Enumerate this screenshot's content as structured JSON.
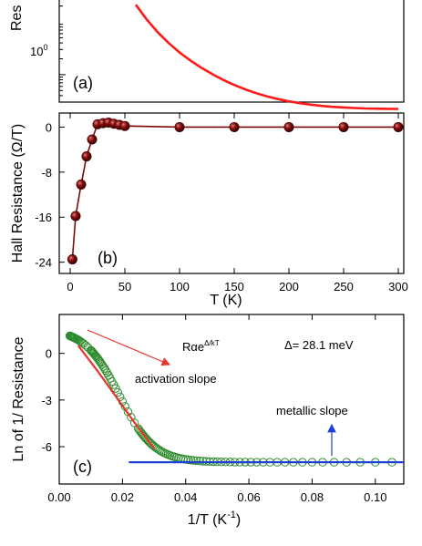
{
  "colors": {
    "panel_a_curve": "#ff1a1a",
    "panel_b_series": "#7a0a0a",
    "panel_c_data": "#2e8b2e",
    "panel_c_fit": "#e8352a",
    "panel_c_metallic": "#1f3fd6",
    "annotation_arrow_red": "#e8352a",
    "annotation_arrow_blue": "#1f3fd6"
  },
  "chart_data": [
    {
      "type": "line",
      "panel_label": "(a)",
      "ylabel": "Res",
      "yscale": "log",
      "yticks": [
        {
          "value": 1,
          "label_base": "10",
          "label_exp": "0"
        }
      ],
      "xlim": [
        -10,
        305
      ],
      "ylim_log10": [
        -0.52,
        1.45
      ],
      "series": [
        {
          "x": [
            60,
            70,
            80,
            90,
            100,
            110,
            120,
            130,
            140,
            150,
            160,
            170,
            180,
            190,
            200,
            210,
            220,
            230,
            240,
            250,
            260,
            270,
            280,
            290,
            300
          ],
          "y": [
            21.2,
            11.1,
            6.38,
            3.98,
            2.64,
            1.85,
            1.35,
            1.02,
            0.795,
            0.638,
            0.527,
            0.446,
            0.387,
            0.345,
            0.312,
            0.288,
            0.27,
            0.256,
            0.246,
            0.239,
            0.233,
            0.229,
            0.227,
            0.225,
            0.224
          ]
        }
      ]
    },
    {
      "type": "line",
      "panel_label": "(b)",
      "ylabel": "Hall Resistance (Ω/T)",
      "xlabel": "T (K)",
      "xlim": [
        -10,
        305
      ],
      "ylim": [
        -26,
        2.5
      ],
      "xticks": [
        0,
        50,
        100,
        150,
        200,
        250,
        300
      ],
      "yticks": [
        0,
        -8,
        -16,
        -24
      ],
      "series": [
        {
          "x": [
            2,
            5,
            10,
            15,
            20,
            25,
            30,
            35,
            40,
            45,
            50,
            100,
            150,
            200,
            250,
            300
          ],
          "y": [
            -23.5,
            -15.8,
            -10.2,
            -5.2,
            -2.2,
            0.5,
            0.7,
            0.8,
            0.6,
            0.4,
            0.2,
            0,
            0,
            0,
            0,
            0
          ]
        }
      ]
    },
    {
      "type": "scatter",
      "panel_label": "(c)",
      "ylabel": "Ln of 1/ Resistance",
      "xlabel": "1/T (K",
      "xlabel_sup": "-1",
      "xlabel_end": ")",
      "xlim": [
        0,
        0.109
      ],
      "ylim": [
        -8.4,
        2.5
      ],
      "xticks": [
        0.0,
        0.02,
        0.04,
        0.06,
        0.08,
        0.1
      ],
      "xtick_labels": [
        "0.00",
        "0.02",
        "0.04",
        "0.06",
        "0.08",
        "0.10"
      ],
      "yticks": [
        0,
        -3,
        -6
      ],
      "formula_main": "Rαe",
      "formula_sup": "Δ/kT",
      "delta_text": "Δ=  28.1 meV",
      "annotation_activation": "activation slope",
      "annotation_metallic": "metallic slope",
      "fit_activation": {
        "x": [
          0.006,
          0.012,
          0.018,
          0.024,
          0.03
        ],
        "y": [
          0.5,
          -1.1,
          -2.8,
          -4.5,
          -6.1
        ]
      },
      "fit_metallic": {
        "x": [
          0.022,
          0.109
        ],
        "y": [
          -7.0,
          -7.0
        ]
      },
      "series": [
        {
          "name": "",
          "x": [],
          "y": []
        }
      ]
    }
  ]
}
